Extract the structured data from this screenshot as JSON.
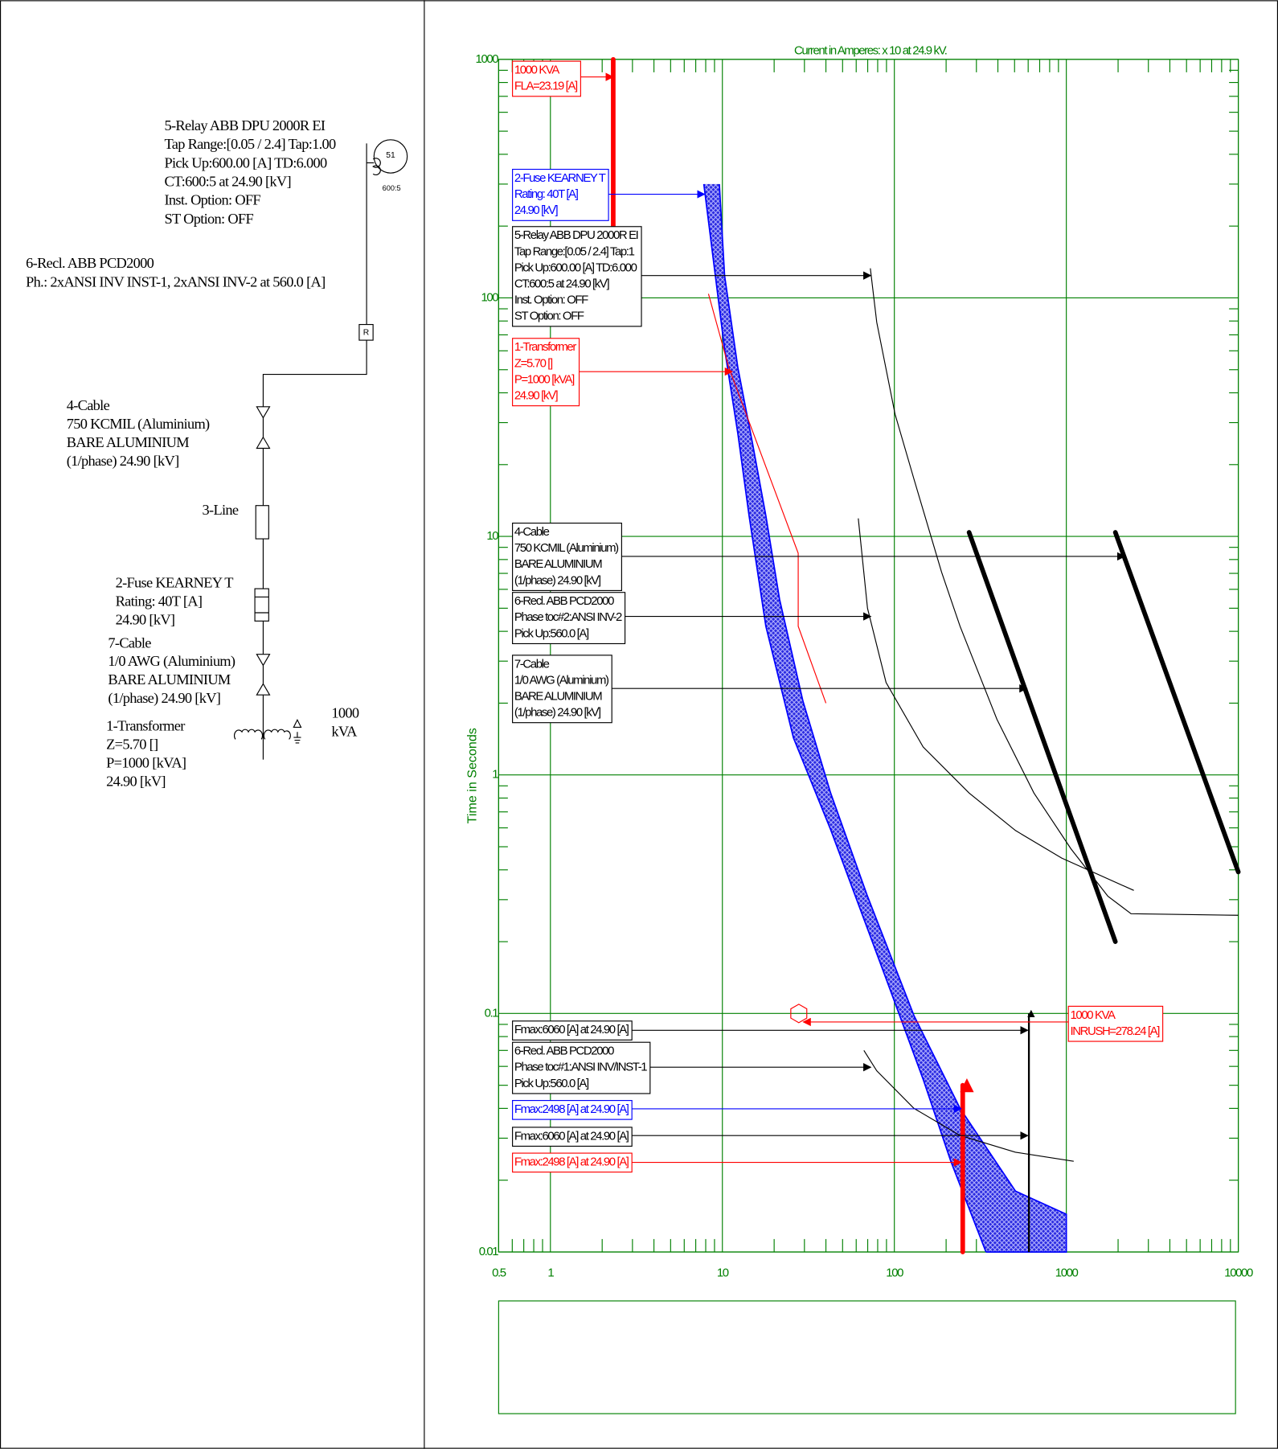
{
  "one_line": {
    "relay": [
      "5-Relay ABB DPU 2000R EI",
      "Tap Range:[0.05 / 2.4] Tap:1.00",
      "Pick Up:600.00 [A] TD:6.000",
      "CT:600:5 at 24.90 [kV]",
      "Inst. Option: OFF",
      "ST Option: OFF"
    ],
    "relay_symbol": "51",
    "ct_ratio": "600:5",
    "recloser": [
      "6-Recl. ABB PCD2000",
      "Ph.: 2xANSI INV INST-1, 2xANSI INV-2 at 560.0 [A]"
    ],
    "recloser_symbol": "R",
    "cable4": [
      "4-Cable",
      "750 KCMIL (Aluminium)",
      "BARE ALUMINIUM",
      "(1/phase) 24.90 [kV]"
    ],
    "line3": "3-Line",
    "fuse": [
      "2-Fuse KEARNEY T",
      "Rating: 40T [A]",
      "24.90 [kV]"
    ],
    "cable7": [
      "7-Cable",
      "1/0 AWG (Aluminium)",
      "BARE ALUMINIUM",
      "(1/phase) 24.90 [kV]"
    ],
    "transformer": [
      "1-Transformer",
      "Z=5.70 []",
      "P=1000 [kVA]",
      "24.90 [kV]"
    ],
    "transformer_rating": [
      "1000",
      "kVA"
    ]
  },
  "chart_data": {
    "type": "line",
    "title": "Current in Amperes: x 10 at 24.9 kV.",
    "ylabel": "Time in Seconds",
    "xscale": "log",
    "yscale": "log",
    "grid": true,
    "grid_color": "#008000",
    "xlim": [
      0.5,
      10000
    ],
    "ylim": [
      0.01,
      1000
    ],
    "xticks": [
      0.5,
      1,
      10,
      100,
      1000,
      10000
    ],
    "yticks": [
      0.01,
      0.1,
      1,
      10,
      100,
      1000
    ],
    "xminorticks": [
      0.6,
      0.7,
      0.8,
      0.9,
      2,
      3,
      4,
      5,
      6,
      7,
      8,
      9,
      20,
      30,
      40,
      50,
      60,
      70,
      80,
      90,
      200,
      300,
      400,
      500,
      600,
      700,
      800,
      900,
      2000,
      3000,
      4000,
      5000,
      6000,
      7000,
      8000,
      9000
    ],
    "yminorticks": [
      0.02,
      0.03,
      0.04,
      0.05,
      0.06,
      0.07,
      0.08,
      0.09,
      0.2,
      0.3,
      0.4,
      0.5,
      0.6,
      0.7,
      0.8,
      0.9,
      2,
      3,
      4,
      5,
      6,
      7,
      8,
      9,
      20,
      30,
      40,
      50,
      60,
      70,
      80,
      90,
      200,
      300,
      400,
      500,
      600,
      700,
      800,
      900
    ],
    "fuse_band": {
      "color": "#0000ff",
      "min_melt": {
        "x": [
          7.8,
          9.1,
          10.3,
          12.3,
          14.3,
          17.9,
          25.9,
          42.6,
          89.5,
          147,
          213,
          341
        ],
        "values": [
          300,
          124,
          61,
          27,
          12.2,
          4.2,
          1.43,
          0.59,
          0.14,
          0.053,
          0.024,
          0.01
        ]
      },
      "total_clear": {
        "x": [
          9.6,
          10.3,
          12.3,
          14.9,
          17.9,
          21.5,
          29.4,
          42.6,
          69.8,
          130,
          241,
          506,
          1000,
          1000
        ],
        "values": [
          300,
          124,
          51,
          25,
          12.2,
          5.45,
          2.04,
          0.84,
          0.31,
          0.098,
          0.04,
          0.018,
          0.0144,
          0.01
        ]
      }
    },
    "series": [
      {
        "color": "#000000",
        "weight": "thin",
        "x": [
          72.5,
          79,
          101,
          130,
          188,
          241,
          395,
          648,
          1064,
          1745,
          2379,
          10000
        ],
        "values": [
          133,
          79,
          32.5,
          17.4,
          7.1,
          4.2,
          1.71,
          0.84,
          0.49,
          0.31,
          0.262,
          0.258
        ]
      },
      {
        "color": "#000000",
        "weight": "thin",
        "x": [
          61.7,
          69.8,
          89.5,
          147,
          272,
          506,
          940,
          2468
        ],
        "values": [
          11.9,
          5,
          2.44,
          1.31,
          0.84,
          0.585,
          0.448,
          0.328
        ]
      },
      {
        "color": "#000000",
        "weight": "thin",
        "x": [
          66.5,
          79,
          130,
          241,
          506,
          1104
        ],
        "values": [
          0.07,
          0.0575,
          0.04,
          0.0308,
          0.0262,
          0.024
        ]
      },
      {
        "color": "#000000",
        "weight": "thick",
        "x": [
          1928,
          10000
        ],
        "values": [
          10.4,
          0.392
        ]
      },
      {
        "color": "#000000",
        "weight": "thick",
        "x": [
          272,
          1928
        ],
        "values": [
          10.4,
          0.2
        ]
      },
      {
        "color": "#ff0000",
        "weight": "thin",
        "x": [
          8.3,
          10.9,
          27.6,
          27.6,
          40
        ],
        "values": [
          104,
          51,
          8.5,
          4.2,
          2
        ]
      },
      {
        "color": "#ff0000",
        "weight": "thick",
        "x": [
          2.319,
          2.319
        ],
        "values": [
          200,
          1000
        ]
      },
      {
        "color": "#000000",
        "weight": "medium",
        "arrow": true,
        "x": [
          606,
          606
        ],
        "values": [
          0.01,
          0.1
        ]
      },
      {
        "color": "#ff0000",
        "weight": "thick",
        "arrow": true,
        "x": [
          249.8,
          249.8
        ],
        "values": [
          0.01,
          0.05
        ]
      }
    ],
    "points": [
      {
        "color": "#ff0000",
        "x": [
          27.82
        ],
        "values": [
          0.1
        ]
      }
    ],
    "annotations": [
      {
        "color": "#ff0000",
        "lines": [
          "1000 KVA",
          "FLA=23.19 [A]"
        ]
      },
      {
        "color": "#0000ff",
        "lines": [
          "2-Fuse KEARNEY T",
          "Rating: 40T [A]",
          "24.90 [kV]"
        ]
      },
      {
        "color": "#000000",
        "lines": [
          "5-Relay ABB DPU 2000R EI",
          "Tap Range:[0.05 / 2.4] Tap:1",
          "Pick Up:600.00 [A] TD:6.000",
          "CT:600:5 at 24.90 [kV]",
          "Inst. Option: OFF",
          "ST Option: OFF"
        ]
      },
      {
        "color": "#ff0000",
        "lines": [
          "1-Transformer",
          "Z=5.70 []",
          "P=1000 [kVA]",
          "24.90 [kV]"
        ]
      },
      {
        "color": "#000000",
        "lines": [
          "4-Cable",
          "750 KCMIL (Aluminium)",
          "BARE ALUMINIUM",
          "(1/phase) 24.90 [kV]"
        ]
      },
      {
        "color": "#000000",
        "lines": [
          "6-Recl. ABB PCD2000",
          "Phase toc#2:ANSI INV-2",
          "Pick Up:560.0 [A]"
        ]
      },
      {
        "color": "#000000",
        "lines": [
          "7-Cable",
          "1/0 AWG (Aluminium)",
          "BARE ALUMINIUM",
          "(1/phase) 24.90 [kV]"
        ]
      },
      {
        "color": "#ff0000",
        "lines": [
          "1000 KVA",
          "INRUSH=278.24 [A]"
        ]
      },
      {
        "color": "#000000",
        "lines": [
          "Fmax:6060 [A] at 24.90 [A]"
        ]
      },
      {
        "color": "#000000",
        "lines": [
          "6-Recl. ABB PCD2000",
          "Phase toc#1:ANSI INV/INST-1",
          "Pick Up:560.0 [A]"
        ]
      },
      {
        "color": "#0000ff",
        "lines": [
          "Fmax:2498 [A] at 24.90 [A]"
        ]
      },
      {
        "color": "#000000",
        "lines": [
          "Fmax:6060 [A] at 24.90 [A]"
        ]
      },
      {
        "color": "#ff0000",
        "lines": [
          "Fmax:2498 [A] at 24.90 [A]"
        ]
      }
    ]
  }
}
